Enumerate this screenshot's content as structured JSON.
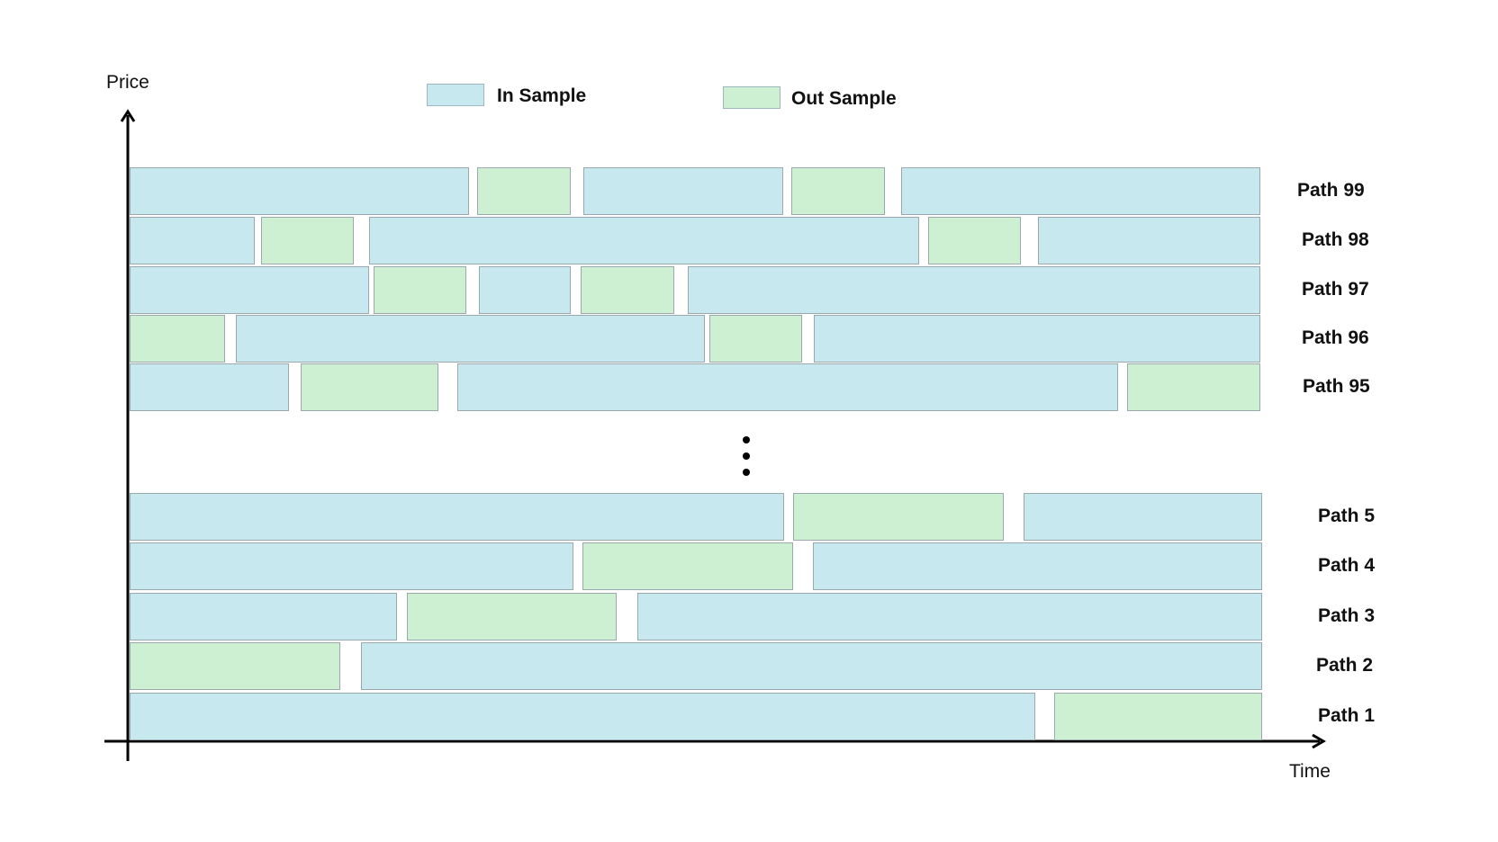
{
  "colors": {
    "in_sample": "#c8e8ef",
    "out_sample": "#cdf0d3",
    "axis": "#000000"
  },
  "axes": {
    "y_label": "Price",
    "x_label": "Time"
  },
  "legend": {
    "in_sample_label": "In Sample",
    "out_sample_label": "Out Sample"
  },
  "continuation_icon": "vertical-ellipsis-icon",
  "paths_top": [
    {
      "label": "Path 99",
      "segments": [
        [
          "in",
          0,
          0.3
        ],
        [
          "out",
          0.307,
          0.39
        ],
        [
          "in",
          0.401,
          0.578
        ],
        [
          "out",
          0.585,
          0.668
        ],
        [
          "in",
          0.682,
          1.0
        ]
      ]
    },
    {
      "label": "Path 98",
      "segments": [
        [
          "in",
          0,
          0.111
        ],
        [
          "out",
          0.116,
          0.198
        ],
        [
          "in",
          0.212,
          0.698
        ],
        [
          "out",
          0.706,
          0.788
        ],
        [
          "in",
          0.803,
          1.0
        ]
      ]
    },
    {
      "label": "Path 97",
      "segments": [
        [
          "in",
          0,
          0.212
        ],
        [
          "out",
          0.216,
          0.298
        ],
        [
          "in",
          0.309,
          0.39
        ],
        [
          "out",
          0.399,
          0.482
        ],
        [
          "in",
          0.494,
          1.0
        ]
      ]
    },
    {
      "label": "Path 96",
      "segments": [
        [
          "out",
          0,
          0.084
        ],
        [
          "in",
          0.094,
          0.509
        ],
        [
          "out",
          0.513,
          0.595
        ],
        [
          "in",
          0.605,
          1.0
        ]
      ]
    },
    {
      "label": "Path 95",
      "segments": [
        [
          "in",
          0,
          0.141
        ],
        [
          "out",
          0.151,
          0.273
        ],
        [
          "in",
          0.29,
          0.874
        ],
        [
          "out",
          0.882,
          1.0
        ]
      ]
    }
  ],
  "paths_bottom": [
    {
      "label": "Path 5",
      "segments": [
        [
          "in",
          0,
          0.578
        ],
        [
          "out",
          0.586,
          0.772
        ],
        [
          "in",
          0.789,
          1.0
        ]
      ]
    },
    {
      "label": "Path 4",
      "segments": [
        [
          "in",
          0,
          0.392
        ],
        [
          "out",
          0.4,
          0.586
        ],
        [
          "in",
          0.603,
          1.0
        ]
      ]
    },
    {
      "label": "Path 3",
      "segments": [
        [
          "in",
          0,
          0.236
        ],
        [
          "out",
          0.245,
          0.43
        ],
        [
          "in",
          0.448,
          1.0
        ]
      ]
    },
    {
      "label": "Path 2",
      "segments": [
        [
          "out",
          0,
          0.186
        ],
        [
          "in",
          0.204,
          1.0
        ]
      ]
    },
    {
      "label": "Path 1",
      "segments": [
        [
          "in",
          0,
          0.8
        ],
        [
          "out",
          0.816,
          1.0
        ]
      ]
    }
  ]
}
